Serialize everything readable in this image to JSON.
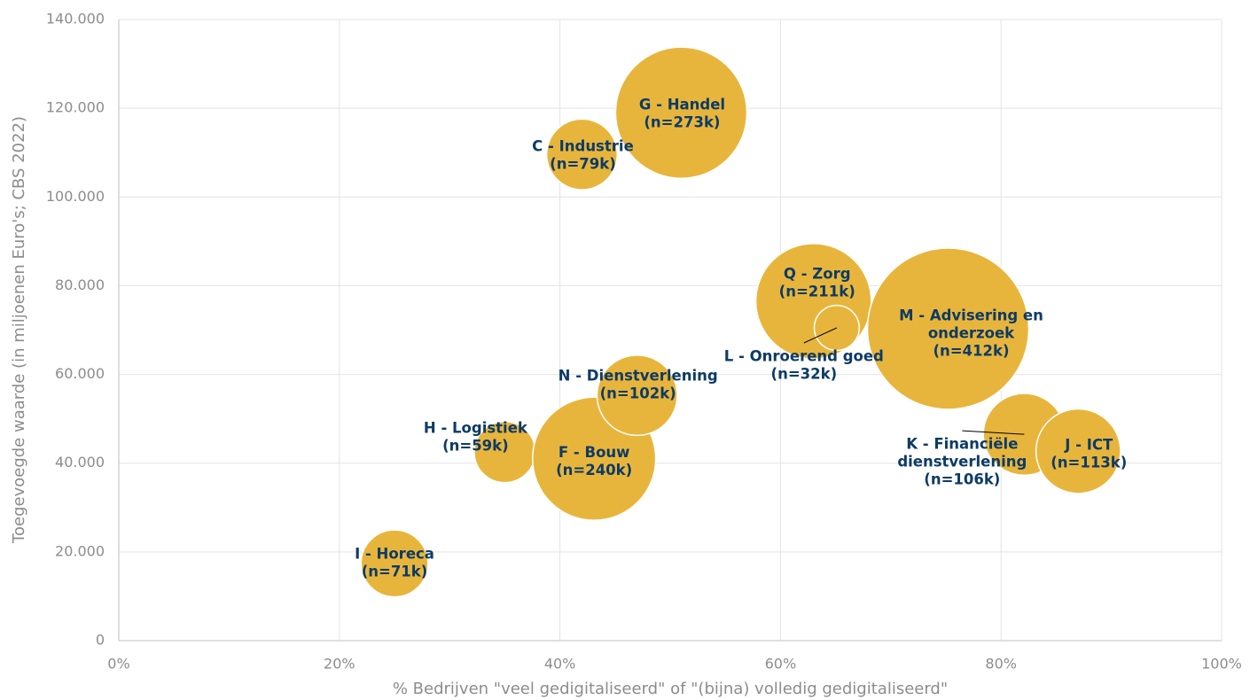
{
  "chart_data": {
    "type": "bubble",
    "xlabel": "% Bedrijven \"veel gedigitaliseerd\" of \"(bijna) volledig gedigitaliseerd\"",
    "ylabel": "Toegevoegde waarde (in miljoenen Euro's; CBS 2022)",
    "color": "#e8b53c",
    "grid": true,
    "xlim": [
      0,
      100
    ],
    "xticks": [
      {
        "value": 0,
        "label": "0%"
      },
      {
        "value": 20,
        "label": "20%"
      },
      {
        "value": 40,
        "label": "40%"
      },
      {
        "value": 60,
        "label": "60%"
      },
      {
        "value": 80,
        "label": "80%"
      },
      {
        "value": 100,
        "label": "100%"
      }
    ],
    "ylim": [
      0,
      140000
    ],
    "yticks": [
      {
        "value": 0,
        "label": "0"
      },
      {
        "value": 20000,
        "label": "20.000"
      },
      {
        "value": 40000,
        "label": "40.000"
      },
      {
        "value": 60000,
        "label": "60.000"
      },
      {
        "value": 80000,
        "label": "80.000"
      },
      {
        "value": 100000,
        "label": "100.000"
      },
      {
        "value": 120000,
        "label": "120.000"
      },
      {
        "value": 140000,
        "label": "140.000"
      }
    ],
    "points": [
      {
        "x": 25,
        "y": 17400,
        "size": 71,
        "label": [
          "I - Horeca",
          "(n=71k)"
        ]
      },
      {
        "x": 35,
        "y": 42500,
        "size": 59,
        "label": [
          "H - Logistiek",
          "(n=59k)"
        ]
      },
      {
        "x": 43.1,
        "y": 41000,
        "size": 240,
        "label": [
          "F - Bouw",
          "(n=240k)"
        ]
      },
      {
        "x": 47,
        "y": 55300,
        "size": 102,
        "label": [
          "N - Dienstverlening",
          "(n=102k)"
        ]
      },
      {
        "x": 42,
        "y": 109600,
        "size": 79,
        "label": [
          "C - Industrie",
          "(n=79k)"
        ]
      },
      {
        "x": 51,
        "y": 119000,
        "size": 273,
        "label": [
          "G - Handel",
          "(n=273k)"
        ]
      },
      {
        "x": 63,
        "y": 76500,
        "size": 211,
        "label": [
          "Q - Zorg",
          "(n=211k)"
        ]
      },
      {
        "x": 75.2,
        "y": 70300,
        "size": 412,
        "label": [
          "M - Advisering en",
          "onderzoek",
          "(n=412k)"
        ]
      },
      {
        "x": 65.1,
        "y": 70500,
        "size": 32,
        "label": [
          "L - Onroerend goed",
          "(n=32k)"
        ]
      },
      {
        "x": 82.1,
        "y": 46500,
        "size": 106,
        "label": [
          "K - Financiële",
          "dienstverlening",
          "(n=106k)"
        ]
      },
      {
        "x": 87,
        "y": 42700,
        "size": 113,
        "label": [
          "J - ICT",
          "(n=113k)"
        ]
      }
    ]
  }
}
